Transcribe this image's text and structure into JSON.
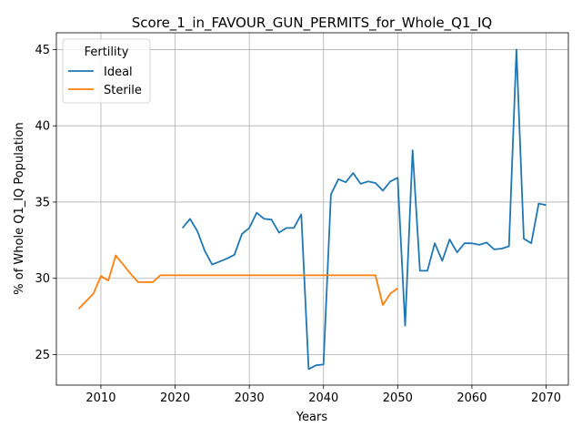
{
  "chart_data": {
    "type": "line",
    "title": "Score_1_in_FAVOUR_GUN_PERMITS_for_Whole_Q1_IQ",
    "xlabel": "Years",
    "ylabel": "% of Whole Q1_IQ Population",
    "xlim": [
      2004,
      2073
    ],
    "ylim": [
      23,
      46.1
    ],
    "xticks": [
      2010,
      2020,
      2030,
      2040,
      2050,
      2060,
      2070
    ],
    "yticks": [
      25,
      30,
      35,
      40,
      45
    ],
    "grid": true,
    "legend": {
      "title": "Fertility",
      "placement": "top-left"
    },
    "series": [
      {
        "name": "Ideal",
        "color": "#1f77b4",
        "x": [
          2021,
          2022,
          2023,
          2024,
          2025,
          2026,
          2027,
          2028,
          2029,
          2030,
          2031,
          2032,
          2033,
          2034,
          2035,
          2036,
          2037,
          2038,
          2039,
          2040,
          2041,
          2042,
          2043,
          2044,
          2045,
          2046,
          2047,
          2048,
          2049,
          2050,
          2051,
          2052,
          2053,
          2054,
          2055,
          2056,
          2057,
          2058,
          2059,
          2060,
          2061,
          2062,
          2063,
          2064,
          2065,
          2066,
          2067,
          2068,
          2069,
          2070
        ],
        "y": [
          33.3,
          33.9,
          33.1,
          31.8,
          30.9,
          31.1,
          31.3,
          31.55,
          32.9,
          33.3,
          34.3,
          33.9,
          33.85,
          33.0,
          33.3,
          33.3,
          34.2,
          24.05,
          24.3,
          24.35,
          35.5,
          36.5,
          36.3,
          36.9,
          36.2,
          36.35,
          36.25,
          35.75,
          36.35,
          36.6,
          26.9,
          38.4,
          30.5,
          30.5,
          32.3,
          31.15,
          32.55,
          31.7,
          32.3,
          32.3,
          32.2,
          32.35,
          31.9,
          31.95,
          32.1,
          45.0,
          32.6,
          32.3,
          34.9,
          34.8
        ]
      },
      {
        "name": "Sterile",
        "color": "#ff7f0e",
        "x": [
          2007,
          2008,
          2009,
          2010,
          2011,
          2012,
          2013,
          2014,
          2015,
          2016,
          2017,
          2018,
          2019,
          2020,
          2021,
          2022,
          2023,
          2024,
          2025,
          2026,
          2027,
          2028,
          2029,
          2030,
          2031,
          2032,
          2033,
          2034,
          2035,
          2036,
          2037,
          2038,
          2039,
          2040,
          2041,
          2042,
          2043,
          2044,
          2045,
          2046,
          2047,
          2048,
          2049,
          2050
        ],
        "y": [
          28.0,
          28.5,
          29.0,
          30.15,
          29.85,
          31.5,
          30.9,
          30.3,
          29.75,
          29.75,
          29.75,
          30.2,
          30.2,
          30.2,
          30.2,
          30.2,
          30.2,
          30.2,
          30.2,
          30.2,
          30.2,
          30.2,
          30.2,
          30.2,
          30.2,
          30.2,
          30.2,
          30.2,
          30.2,
          30.2,
          30.2,
          30.2,
          30.2,
          30.2,
          30.2,
          30.2,
          30.2,
          30.2,
          30.2,
          30.2,
          30.2,
          28.25,
          29.0,
          29.35
        ]
      }
    ]
  }
}
